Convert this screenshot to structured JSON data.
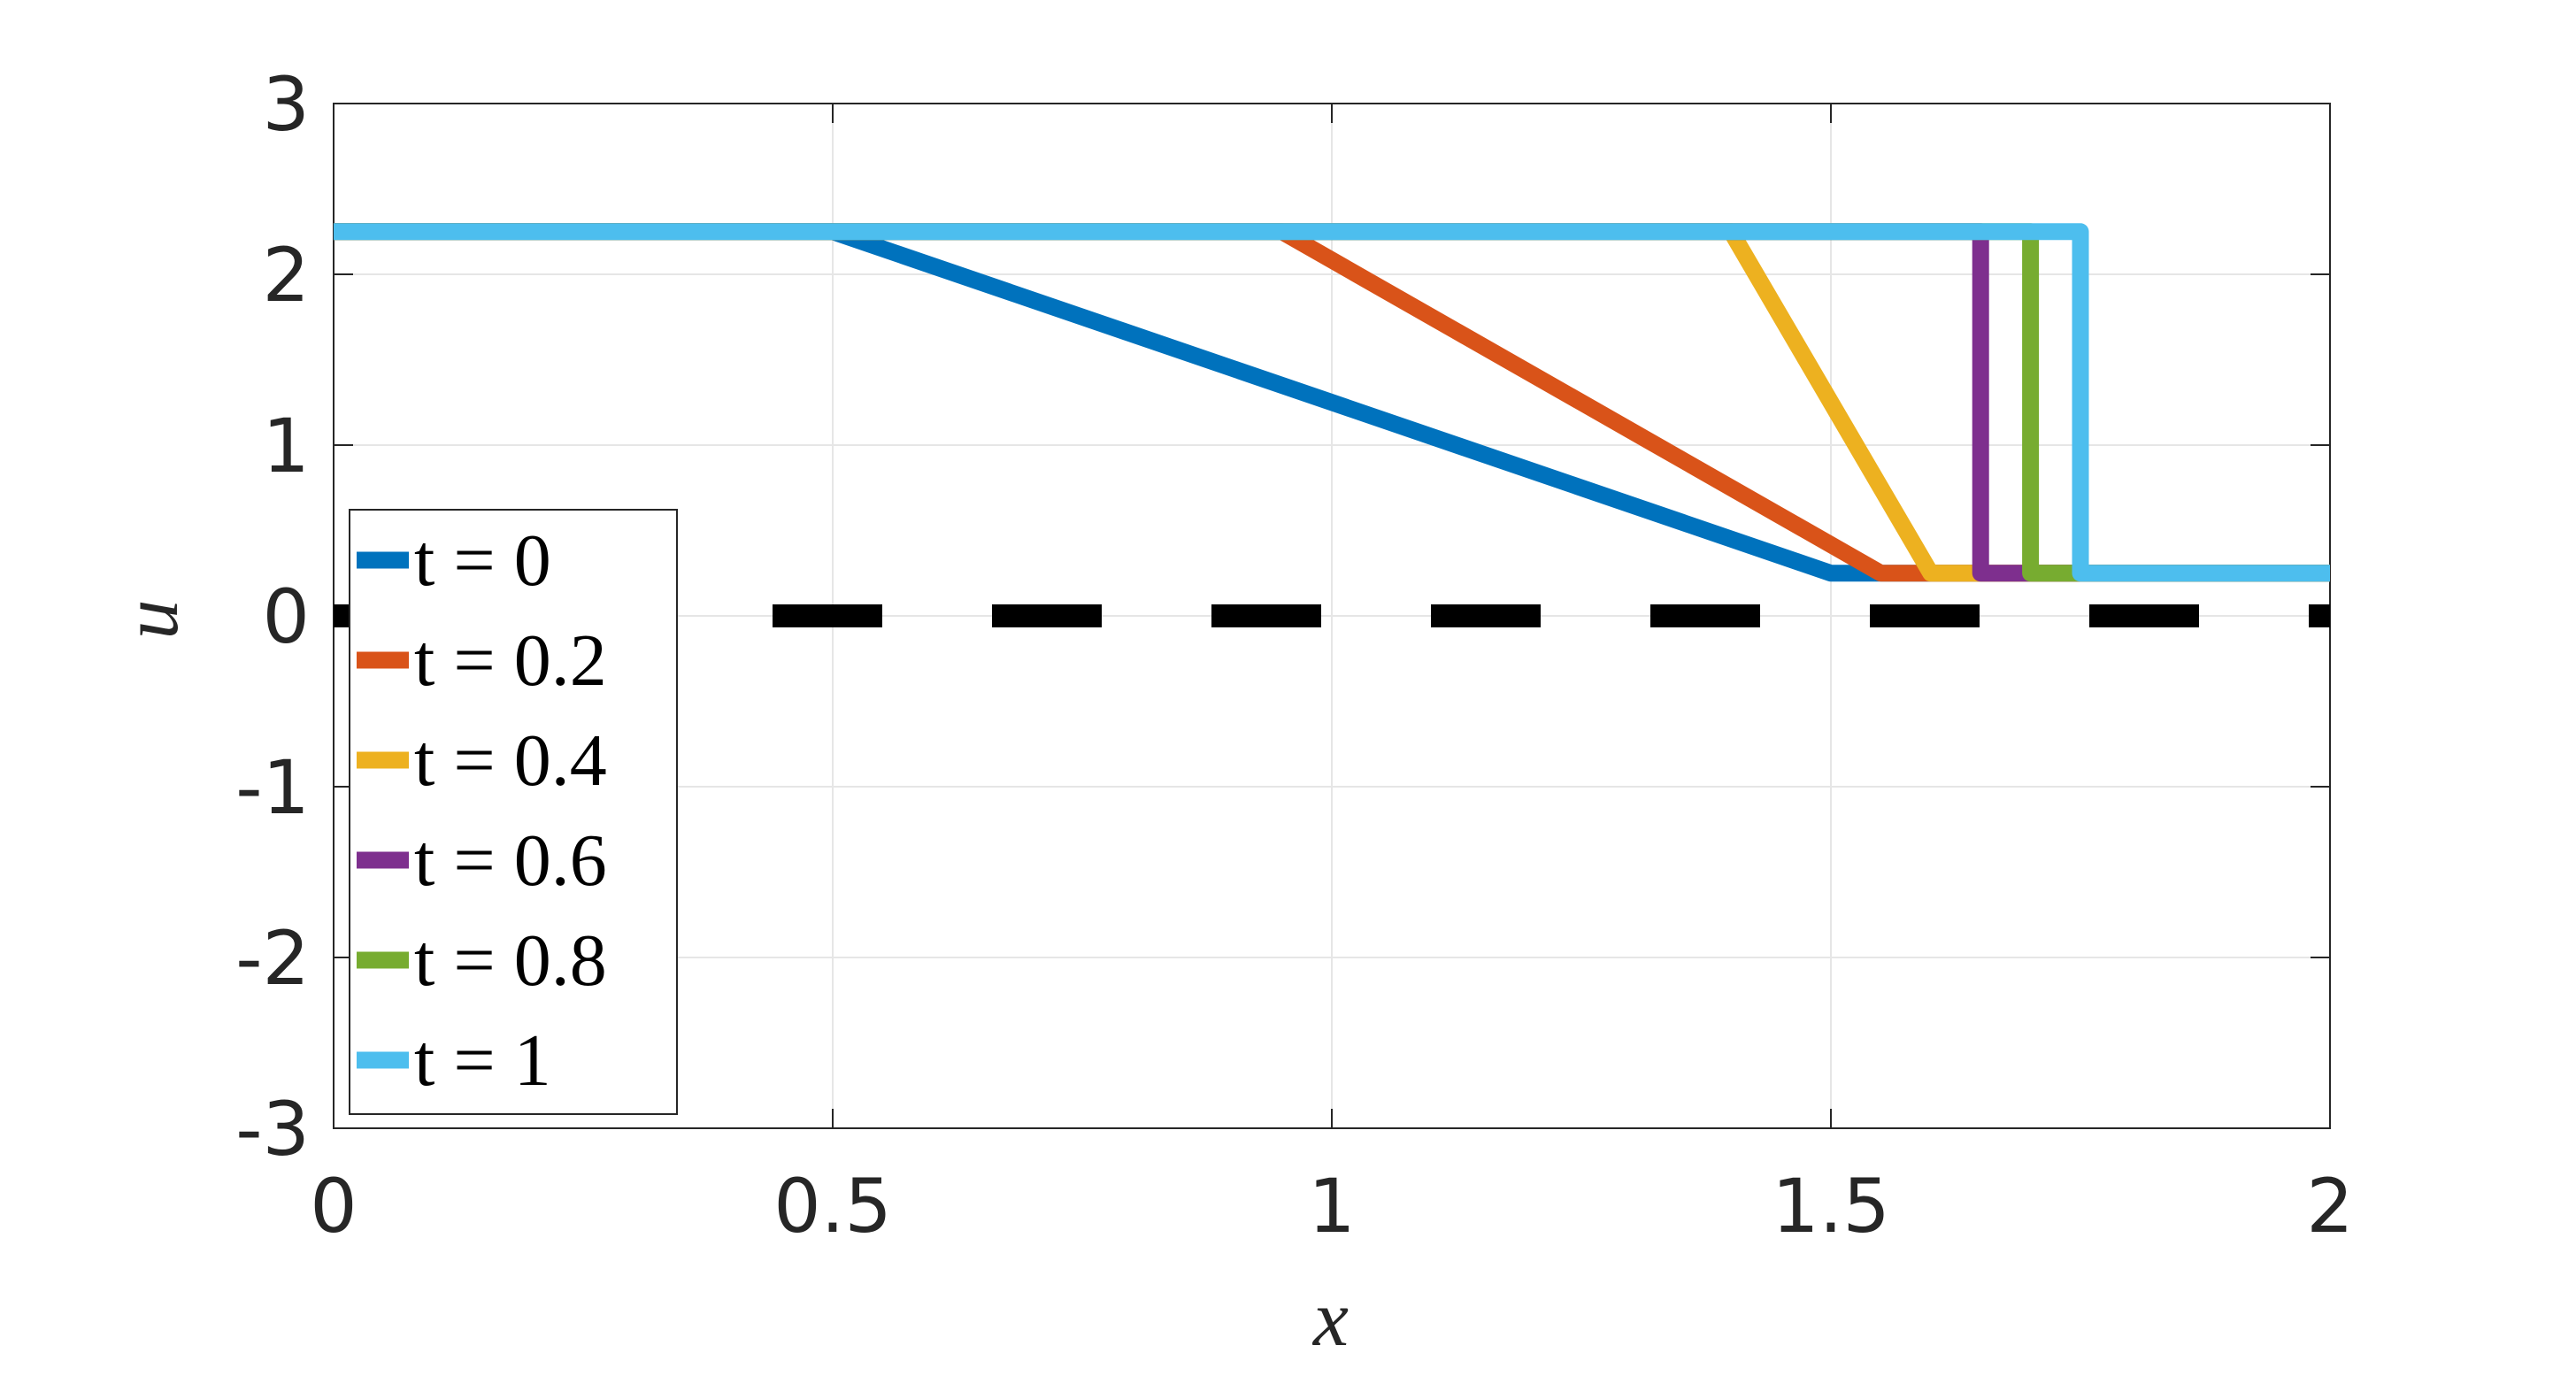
{
  "chart_data": {
    "type": "line",
    "xlabel": "x",
    "ylabel": "u",
    "xlim": [
      0,
      2
    ],
    "ylim": [
      -3,
      3
    ],
    "xticks": [
      0,
      0.5,
      1,
      1.5,
      2
    ],
    "yticks": [
      -3,
      -2,
      -1,
      0,
      1,
      2,
      3
    ],
    "grid": true,
    "legend": "lower-left",
    "reference_line": {
      "y": 0,
      "color": "#000000",
      "dash": true
    },
    "series": [
      {
        "name": "t = 0",
        "color": "#0072BD",
        "x": [
          0,
          0.5,
          1.5,
          2
        ],
        "values": [
          2.25,
          2.25,
          0.25,
          0.25
        ]
      },
      {
        "name": "t = 0.2",
        "color": "#D95319",
        "x": [
          0,
          0.95,
          1.55,
          2
        ],
        "values": [
          2.25,
          2.25,
          0.25,
          0.25
        ]
      },
      {
        "name": "t = 0.4",
        "color": "#EDB120",
        "x": [
          0,
          1.4,
          1.6,
          2
        ],
        "values": [
          2.25,
          2.25,
          0.25,
          0.25
        ]
      },
      {
        "name": "t = 0.6",
        "color": "#7E2F8E",
        "x": [
          0,
          1.65,
          1.65,
          2
        ],
        "values": [
          2.25,
          2.25,
          0.25,
          0.25
        ]
      },
      {
        "name": "t = 0.8",
        "color": "#77AC30",
        "x": [
          0,
          1.7,
          1.7,
          2
        ],
        "values": [
          2.25,
          2.25,
          0.25,
          0.25
        ]
      },
      {
        "name": "t = 1",
        "color": "#4DBEEE",
        "x": [
          0,
          1.75,
          1.75,
          2
        ],
        "values": [
          2.25,
          2.25,
          0.25,
          0.25
        ]
      }
    ]
  }
}
